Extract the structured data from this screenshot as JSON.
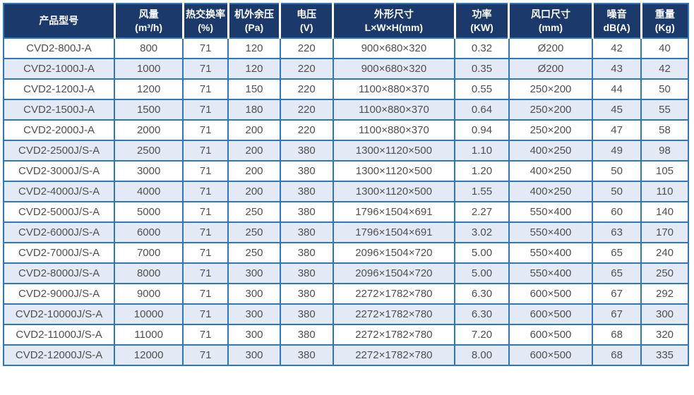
{
  "colors": {
    "header_bg": "#1b3a6b",
    "header_text": "#ffffff",
    "border": "#2e77b8",
    "stripe_row": "#e3eaf6",
    "row_bg": "#ffffff",
    "cell_text": "#4f4f4f"
  },
  "table": {
    "columns": [
      {
        "line1": "产品型号",
        "line2": ""
      },
      {
        "line1": "风量",
        "line2": "(m³/h)"
      },
      {
        "line1": "热交换率",
        "line2": "(%)"
      },
      {
        "line1": "机外余压",
        "line2": "(Pa)"
      },
      {
        "line1": "电压",
        "line2": "(V)"
      },
      {
        "line1": "外形尺寸",
        "line2": "L×W×H(mm)"
      },
      {
        "line1": "功率",
        "line2": "(KW)"
      },
      {
        "line1": "风口尺寸",
        "line2": "(mm)"
      },
      {
        "line1": "噪音",
        "line2": "dB(A)"
      },
      {
        "line1": "重量",
        "line2": "(Kg)"
      }
    ],
    "rows": [
      [
        "CVD2-800J-A",
        "800",
        "71",
        "120",
        "220",
        "900×680×320",
        "0.32",
        "Ø200",
        "42",
        "40"
      ],
      [
        "CVD2-1000J-A",
        "1000",
        "71",
        "120",
        "220",
        "900×680×320",
        "0.35",
        "Ø200",
        "43",
        "42"
      ],
      [
        "CVD2-1200J-A",
        "1200",
        "71",
        "150",
        "220",
        "1100×880×370",
        "0.55",
        "250×200",
        "44",
        "50"
      ],
      [
        "CVD2-1500J-A",
        "1500",
        "71",
        "180",
        "220",
        "1100×880×370",
        "0.64",
        "250×200",
        "45",
        "55"
      ],
      [
        "CVD2-2000J-A",
        "2000",
        "71",
        "200",
        "220",
        "1100×880×370",
        "0.94",
        "250×200",
        "47",
        "58"
      ],
      [
        "CVD2-2500J/S-A",
        "2500",
        "71",
        "200",
        "380",
        "1300×1120×500",
        "1.10",
        "400×250",
        "49",
        "98"
      ],
      [
        "CVD2-3000J/S-A",
        "3000",
        "71",
        "200",
        "380",
        "1300×1120×500",
        "1.20",
        "400×250",
        "50",
        "105"
      ],
      [
        "CVD2-4000J/S-A",
        "4000",
        "71",
        "200",
        "380",
        "1300×1120×500",
        "1.55",
        "400×250",
        "50",
        "110"
      ],
      [
        "CVD2-5000J/S-A",
        "5000",
        "71",
        "250",
        "380",
        "1796×1504×691",
        "2.27",
        "550×400",
        "60",
        "140"
      ],
      [
        "CVD2-6000J/S-A",
        "6000",
        "71",
        "250",
        "380",
        "1796×1504×691",
        "3.02",
        "550×400",
        "63",
        "170"
      ],
      [
        "CVD2-7000J/S-A",
        "7000",
        "71",
        "250",
        "380",
        "2096×1504×720",
        "5.00",
        "550×400",
        "65",
        "240"
      ],
      [
        "CVD2-8000J/S-A",
        "8000",
        "71",
        "300",
        "380",
        "2096×1504×720",
        "5.00",
        "550×400",
        "65",
        "250"
      ],
      [
        "CVD2-9000J/S-A",
        "9000",
        "71",
        "300",
        "380",
        "2272×1782×780",
        "6.30",
        "600×500",
        "67",
        "292"
      ],
      [
        "CVD2-10000J/S-A",
        "10000",
        "71",
        "300",
        "380",
        "2272×1782×780",
        "6.30",
        "600×500",
        "67",
        "300"
      ],
      [
        "CVD2-11000J/S-A",
        "11000",
        "71",
        "300",
        "380",
        "2272×1782×780",
        "7.20",
        "600×500",
        "68",
        "320"
      ],
      [
        "CVD2-12000J/S-A",
        "12000",
        "71",
        "300",
        "380",
        "2272×1782×780",
        "8.00",
        "600×500",
        "68",
        "335"
      ]
    ]
  },
  "chart_data": {
    "type": "table",
    "title": "",
    "columns": [
      "产品型号",
      "风量 (m³/h)",
      "热交换率 (%)",
      "机外余压 (Pa)",
      "电压 (V)",
      "外形尺寸 L×W×H(mm)",
      "功率 (KW)",
      "风口尺寸 (mm)",
      "噪音 dB(A)",
      "重量 (Kg)"
    ],
    "rows": [
      [
        "CVD2-800J-A",
        800,
        71,
        120,
        220,
        "900×680×320",
        0.32,
        "Ø200",
        42,
        40
      ],
      [
        "CVD2-1000J-A",
        1000,
        71,
        120,
        220,
        "900×680×320",
        0.35,
        "Ø200",
        43,
        42
      ],
      [
        "CVD2-1200J-A",
        1200,
        71,
        150,
        220,
        "1100×880×370",
        0.55,
        "250×200",
        44,
        50
      ],
      [
        "CVD2-1500J-A",
        1500,
        71,
        180,
        220,
        "1100×880×370",
        0.64,
        "250×200",
        45,
        55
      ],
      [
        "CVD2-2000J-A",
        2000,
        71,
        200,
        220,
        "1100×880×370",
        0.94,
        "250×200",
        47,
        58
      ],
      [
        "CVD2-2500J/S-A",
        2500,
        71,
        200,
        380,
        "1300×1120×500",
        1.1,
        "400×250",
        49,
        98
      ],
      [
        "CVD2-3000J/S-A",
        3000,
        71,
        200,
        380,
        "1300×1120×500",
        1.2,
        "400×250",
        50,
        105
      ],
      [
        "CVD2-4000J/S-A",
        4000,
        71,
        200,
        380,
        "1300×1120×500",
        1.55,
        "400×250",
        50,
        110
      ],
      [
        "CVD2-5000J/S-A",
        5000,
        71,
        250,
        380,
        "1796×1504×691",
        2.27,
        "550×400",
        60,
        140
      ],
      [
        "CVD2-6000J/S-A",
        6000,
        71,
        250,
        380,
        "1796×1504×691",
        3.02,
        "550×400",
        63,
        170
      ],
      [
        "CVD2-7000J/S-A",
        7000,
        71,
        250,
        380,
        "2096×1504×720",
        5.0,
        "550×400",
        65,
        240
      ],
      [
        "CVD2-8000J/S-A",
        8000,
        71,
        300,
        380,
        "2096×1504×720",
        5.0,
        "550×400",
        65,
        250
      ],
      [
        "CVD2-9000J/S-A",
        9000,
        71,
        300,
        380,
        "2272×1782×780",
        6.3,
        "600×500",
        67,
        292
      ],
      [
        "CVD2-10000J/S-A",
        10000,
        71,
        300,
        380,
        "2272×1782×780",
        6.3,
        "600×500",
        67,
        300
      ],
      [
        "CVD2-11000J/S-A",
        11000,
        71,
        300,
        380,
        "2272×1782×780",
        7.2,
        "600×500",
        68,
        320
      ],
      [
        "CVD2-12000J/S-A",
        12000,
        71,
        300,
        380,
        "2272×1782×780",
        8.0,
        "600×500",
        68,
        335
      ]
    ],
    "layout_hints": {
      "striped_rows": "even rows light blue",
      "header_style": "dark navy background, white bold text",
      "grid": true
    }
  }
}
